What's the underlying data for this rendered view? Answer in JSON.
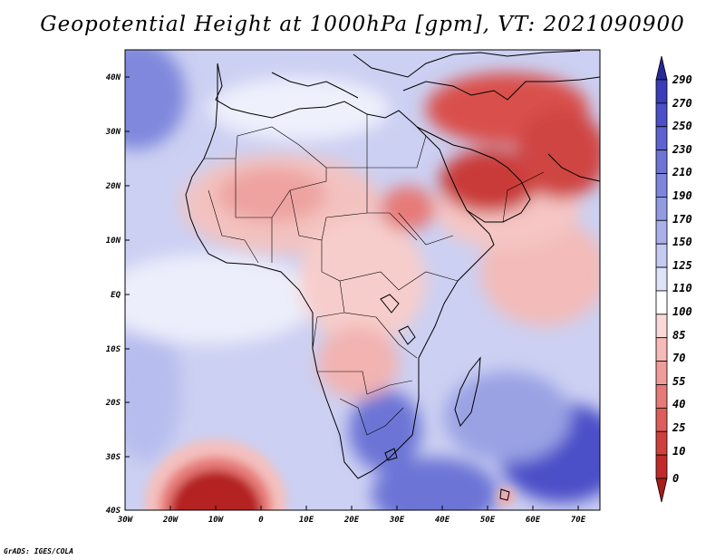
{
  "title": "Geopotential Height at 1000hPa [gpm], VT: 2021090900",
  "credit": "GrADS: IGES/COLA",
  "map": {
    "lat_labels": [
      "40N",
      "30N",
      "20N",
      "10N",
      "EQ",
      "10S",
      "20S",
      "30S",
      "40S"
    ],
    "lon_labels": [
      "30W",
      "20W",
      "10W",
      "0",
      "10E",
      "20E",
      "30E",
      "40E",
      "50E",
      "60E",
      "70E"
    ]
  },
  "colorbar": {
    "levels": [
      "290",
      "270",
      "250",
      "230",
      "210",
      "190",
      "170",
      "150",
      "125",
      "110",
      "100",
      "85",
      "70",
      "55",
      "40",
      "25",
      "10",
      "0"
    ],
    "colors": [
      "#27289a",
      "#3a3cb8",
      "#4b4fc8",
      "#5c62d0",
      "#6c74d6",
      "#7d86dc",
      "#929ae2",
      "#aab0ea",
      "#c5caf2",
      "#e0e3f8",
      "#ffffff",
      "#fbd9d8",
      "#f6bab8",
      "#f09c99",
      "#e67a77",
      "#dc5d5a",
      "#cf3f3d",
      "#c02a2a",
      "#a81c1c"
    ]
  }
}
